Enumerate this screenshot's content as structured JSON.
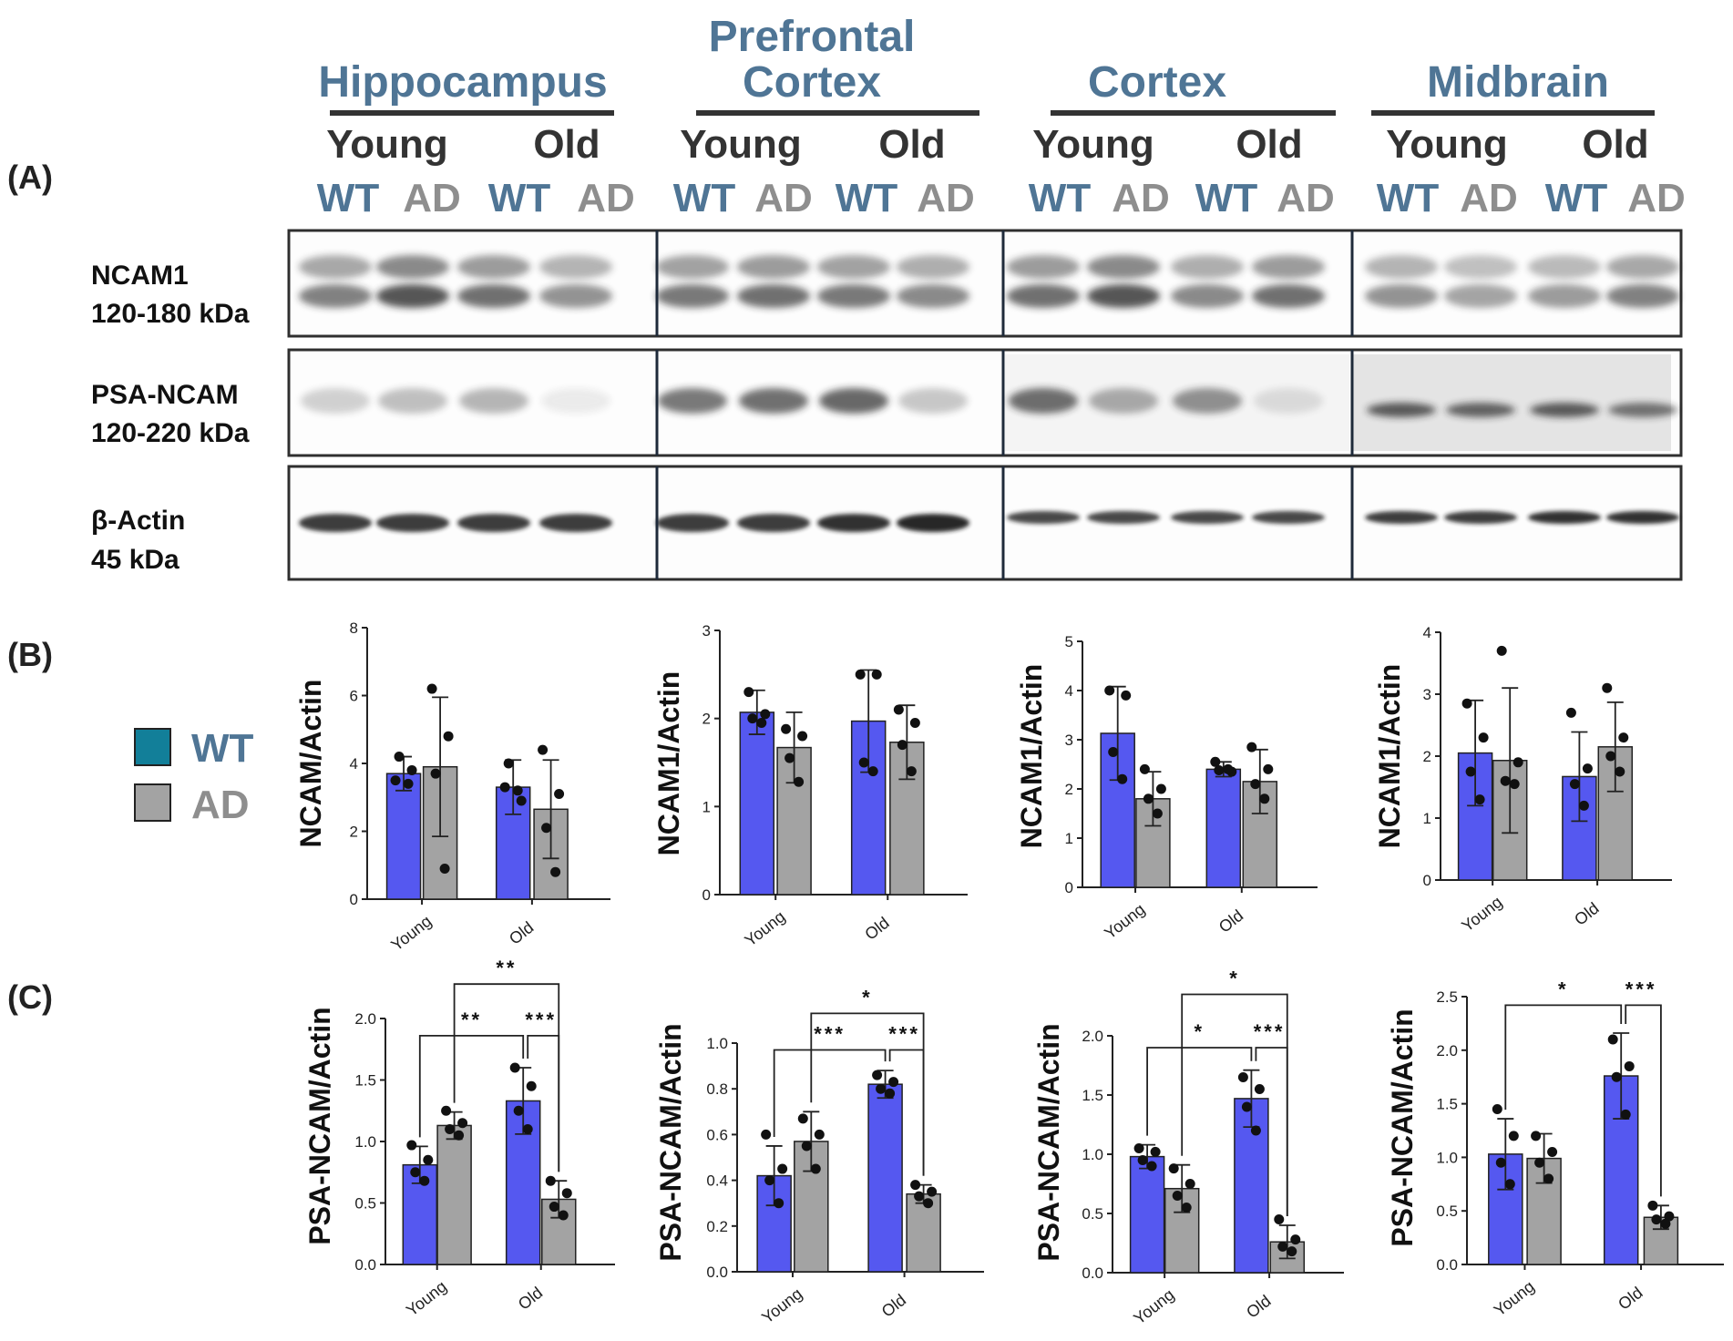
{
  "panel_labels": {
    "a": "(A)",
    "b": "(B)",
    "c": "(C)"
  },
  "colors": {
    "wt_header": "#4f7595",
    "ad_header": "#8e8e8e",
    "wt_bar": "#5558f0",
    "ad_bar": "#a3a3a3",
    "wt_legend": "#127f99",
    "legend_wt_text": "#4f7595",
    "legend_ad_text": "#8e8e8e"
  },
  "blot": {
    "regions": [
      {
        "name": [
          "Hippocampus"
        ]
      },
      {
        "name": [
          "Prefrontal",
          "Cortex"
        ]
      },
      {
        "name": [
          "Cortex"
        ]
      },
      {
        "name": [
          "Midbrain"
        ]
      }
    ],
    "age_young": "Young",
    "age_old": "Old",
    "geno_wt": "WT",
    "geno_ad": "AD",
    "rows": [
      {
        "line1": "NCAM1",
        "line2": "120-180 kDa"
      },
      {
        "line1": "PSA-NCAM",
        "line2": "120-220 kDa"
      },
      {
        "line1": "β-Actin",
        "line2": "45 kDa"
      }
    ]
  },
  "legend": {
    "wt": "WT",
    "ad": "AD"
  },
  "chart_data": [
    {
      "type": "bar",
      "row": "B",
      "categories": [
        "Young",
        "Old"
      ],
      "ylabel": "NCAM/Actin",
      "ylim": [
        0,
        8
      ],
      "yticks": [
        "0",
        "2",
        "4",
        "6",
        "8"
      ],
      "series": [
        {
          "name": "WT",
          "values": [
            3.7,
            3.3
          ],
          "err": [
            0.5,
            0.8
          ],
          "points": [
            [
              3.5,
              3.8,
              4.2,
              3.4
            ],
            [
              3.3,
              2.9,
              4.0,
              3.2
            ]
          ]
        },
        {
          "name": "AD",
          "values": [
            3.9,
            2.65
          ],
          "err": [
            2.05,
            1.45
          ],
          "points": [
            [
              6.2,
              4.8,
              3.7,
              0.9
            ],
            [
              4.4,
              3.1,
              2.1,
              0.8
            ]
          ]
        }
      ],
      "significance": []
    },
    {
      "type": "bar",
      "row": "B",
      "categories": [
        "Young",
        "Old"
      ],
      "ylabel": "NCAM1/Actin",
      "ylim": [
        0,
        3
      ],
      "yticks": [
        "0",
        "1",
        "2",
        "3"
      ],
      "series": [
        {
          "name": "WT",
          "values": [
            2.07,
            1.97
          ],
          "err": [
            0.25,
            0.58
          ],
          "points": [
            [
              2.3,
              2.05,
              2.0,
              1.95
            ],
            [
              2.5,
              2.5,
              1.5,
              1.4
            ]
          ]
        },
        {
          "name": "AD",
          "values": [
            1.67,
            1.73
          ],
          "err": [
            0.4,
            0.42
          ],
          "points": [
            [
              1.88,
              1.8,
              1.55,
              1.28
            ],
            [
              2.1,
              1.95,
              1.7,
              1.4
            ]
          ]
        }
      ],
      "significance": []
    },
    {
      "type": "bar",
      "row": "B",
      "categories": [
        "Young",
        "Old"
      ],
      "ylabel": "NCAM1/Actin",
      "ylim": [
        0,
        5
      ],
      "yticks": [
        "0",
        "1",
        "2",
        "3",
        "4",
        "5"
      ],
      "series": [
        {
          "name": "WT",
          "values": [
            3.13,
            2.4
          ],
          "err": [
            0.95,
            0.15
          ],
          "points": [
            [
              4.0,
              3.9,
              2.75,
              2.2
            ],
            [
              2.55,
              2.35,
              2.38,
              2.4
            ]
          ]
        },
        {
          "name": "AD",
          "values": [
            1.8,
            2.15
          ],
          "err": [
            0.55,
            0.65
          ],
          "points": [
            [
              2.4,
              2.0,
              1.8,
              1.5
            ],
            [
              2.85,
              2.4,
              2.1,
              1.8
            ]
          ]
        }
      ],
      "significance": []
    },
    {
      "type": "bar",
      "row": "B",
      "categories": [
        "Young",
        "Old"
      ],
      "ylabel": "NCAM1/Actin",
      "ylim": [
        0,
        4
      ],
      "yticks": [
        "0",
        "1",
        "2",
        "3",
        "4"
      ],
      "series": [
        {
          "name": "WT",
          "values": [
            2.05,
            1.67
          ],
          "err": [
            0.85,
            0.72
          ],
          "points": [
            [
              2.85,
              2.3,
              1.75,
              1.3
            ],
            [
              2.7,
              1.8,
              1.55,
              1.2
            ]
          ]
        },
        {
          "name": "AD",
          "values": [
            1.93,
            2.15
          ],
          "err": [
            1.17,
            0.72
          ],
          "points": [
            [
              3.7,
              1.9,
              1.6,
              1.55
            ],
            [
              3.1,
              2.3,
              2.0,
              1.75
            ]
          ]
        }
      ],
      "significance": []
    },
    {
      "type": "bar",
      "row": "C",
      "categories": [
        "Young",
        "Old"
      ],
      "ylabel": "PSA-NCAM/Actin",
      "ylim": [
        0,
        2
      ],
      "yticks": [
        "0.0",
        "0.5",
        "1.0",
        "1.5",
        "2.0"
      ],
      "series": [
        {
          "name": "WT",
          "values": [
            0.81,
            1.33
          ],
          "err": [
            0.15,
            0.27
          ],
          "points": [
            [
              0.97,
              0.85,
              0.75,
              0.68
            ],
            [
              1.6,
              1.45,
              1.25,
              1.1
            ]
          ]
        },
        {
          "name": "AD",
          "values": [
            1.13,
            0.53
          ],
          "err": [
            0.11,
            0.15
          ],
          "points": [
            [
              1.25,
              1.15,
              1.1,
              1.05
            ],
            [
              0.68,
              0.58,
              0.47,
              0.4
            ]
          ]
        }
      ],
      "significance": [
        {
          "label": "**",
          "from": "Young-AD",
          "to": "Old-AD",
          "level": 2.28
        },
        {
          "label": "**",
          "from": "Young-WT",
          "to": "Old-WT",
          "level": 1.86
        },
        {
          "label": "***",
          "from": "Old-WT",
          "to": "Old-AD",
          "level": 1.86
        }
      ]
    },
    {
      "type": "bar",
      "row": "C",
      "categories": [
        "Young",
        "Old"
      ],
      "ylabel": "PSA-NCAM/Actin",
      "ylim": [
        0,
        1
      ],
      "yticks": [
        "0.0",
        "0.2",
        "0.4",
        "0.6",
        "0.8",
        "1.0"
      ],
      "series": [
        {
          "name": "WT",
          "values": [
            0.42,
            0.82
          ],
          "err": [
            0.13,
            0.06
          ],
          "points": [
            [
              0.6,
              0.45,
              0.4,
              0.3
            ],
            [
              0.86,
              0.83,
              0.8,
              0.78
            ]
          ]
        },
        {
          "name": "AD",
          "values": [
            0.57,
            0.34
          ],
          "err": [
            0.13,
            0.04
          ],
          "points": [
            [
              0.67,
              0.6,
              0.55,
              0.45
            ],
            [
              0.38,
              0.35,
              0.33,
              0.3
            ]
          ]
        }
      ],
      "significance": [
        {
          "label": "*",
          "from": "Young-AD",
          "to": "Old-AD",
          "level": 1.13
        },
        {
          "label": "***",
          "from": "Young-WT",
          "to": "Old-WT",
          "level": 0.97
        },
        {
          "label": "***",
          "from": "Old-WT",
          "to": "Old-AD",
          "level": 0.97
        }
      ]
    },
    {
      "type": "bar",
      "row": "C",
      "categories": [
        "Young",
        "Old"
      ],
      "ylabel": "PSA-NCAM/Actin",
      "ylim": [
        0,
        2
      ],
      "yticks": [
        "0.0",
        "0.5",
        "1.0",
        "1.5",
        "2.0"
      ],
      "series": [
        {
          "name": "WT",
          "values": [
            0.98,
            1.47
          ],
          "err": [
            0.1,
            0.24
          ],
          "points": [
            [
              1.05,
              1.02,
              0.95,
              0.9
            ],
            [
              1.65,
              1.55,
              1.4,
              1.2
            ]
          ]
        },
        {
          "name": "AD",
          "values": [
            0.71,
            0.26
          ],
          "err": [
            0.2,
            0.14
          ],
          "points": [
            [
              0.88,
              0.75,
              0.65,
              0.55
            ],
            [
              0.45,
              0.28,
              0.22,
              0.18
            ]
          ]
        }
      ],
      "significance": [
        {
          "label": "*",
          "from": "Young-AD",
          "to": "Old-AD",
          "level": 2.35
        },
        {
          "label": "*",
          "from": "Young-WT",
          "to": "Old-WT",
          "level": 1.9
        },
        {
          "label": "***",
          "from": "Old-WT",
          "to": "Old-AD",
          "level": 1.9
        }
      ]
    },
    {
      "type": "bar",
      "row": "C",
      "categories": [
        "Young",
        "Old"
      ],
      "ylabel": "PSA-NCAM/Actin",
      "ylim": [
        0,
        2.5
      ],
      "yticks": [
        "0.0",
        "0.5",
        "1.0",
        "1.5",
        "2.0",
        "2.5"
      ],
      "series": [
        {
          "name": "WT",
          "values": [
            1.03,
            1.76
          ],
          "err": [
            0.33,
            0.4
          ],
          "points": [
            [
              1.45,
              1.2,
              0.95,
              0.75
            ],
            [
              2.1,
              1.85,
              1.75,
              1.4
            ]
          ]
        },
        {
          "name": "AD",
          "values": [
            0.99,
            0.44
          ],
          "err": [
            0.23,
            0.11
          ],
          "points": [
            [
              1.2,
              1.05,
              0.95,
              0.8
            ],
            [
              0.55,
              0.45,
              0.42,
              0.38
            ]
          ]
        }
      ],
      "significance": [
        {
          "label": "*",
          "from": "Young-WT",
          "to": "Old-WT",
          "level": 2.42
        },
        {
          "label": "***",
          "from": "Old-WT",
          "to": "Old-AD",
          "level": 2.42
        }
      ]
    }
  ]
}
